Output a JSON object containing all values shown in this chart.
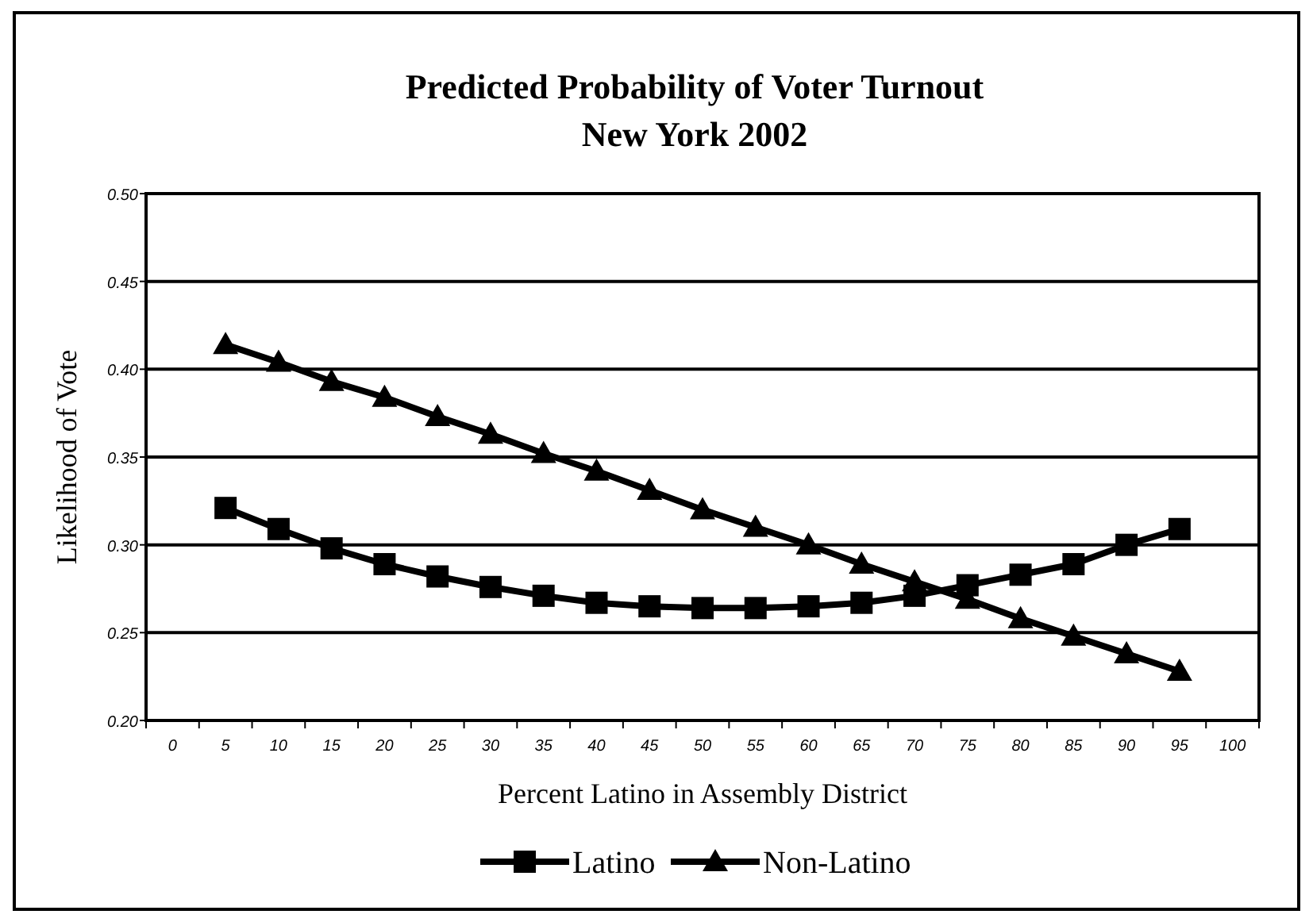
{
  "chart_data": {
    "type": "line",
    "title": "Predicted Probability of Voter Turnout\nNew York 2002",
    "xlabel": "Percent Latino in Assembly District",
    "ylabel": "Likelihood of Vote",
    "categories": [
      "0",
      "5",
      "10",
      "15",
      "20",
      "25",
      "30",
      "35",
      "40",
      "45",
      "50",
      "55",
      "60",
      "65",
      "70",
      "75",
      "80",
      "85",
      "90",
      "95",
      "100"
    ],
    "series": [
      {
        "name": "Latino",
        "color": "#000000",
        "marker": "square",
        "values": [
          null,
          0.321,
          0.309,
          0.298,
          0.289,
          0.282,
          0.276,
          0.271,
          0.267,
          0.265,
          0.264,
          0.264,
          0.265,
          0.267,
          0.271,
          0.277,
          0.283,
          0.289,
          0.3,
          0.309,
          null
        ]
      },
      {
        "name": "Non-Latino",
        "color": "#000000",
        "marker": "triangle",
        "values": [
          null,
          0.414,
          0.404,
          0.393,
          0.384,
          0.373,
          0.363,
          0.352,
          0.342,
          0.331,
          0.32,
          0.31,
          0.3,
          0.289,
          0.279,
          0.269,
          0.258,
          0.248,
          0.238,
          0.228,
          null
        ]
      }
    ],
    "ylim": [
      0.2,
      0.5
    ],
    "yticks": [
      {
        "value": 0.2,
        "label": "0.20"
      },
      {
        "value": 0.25,
        "label": "0.25"
      },
      {
        "value": 0.3,
        "label": "0.30"
      },
      {
        "value": 0.35,
        "label": "0.35"
      },
      {
        "value": 0.4,
        "label": "0.40"
      },
      {
        "value": 0.45,
        "label": "0.45"
      },
      {
        "value": 0.5,
        "label": "0.50"
      }
    ],
    "grid": "y",
    "legend": "bottom",
    "line_style": "solid"
  }
}
